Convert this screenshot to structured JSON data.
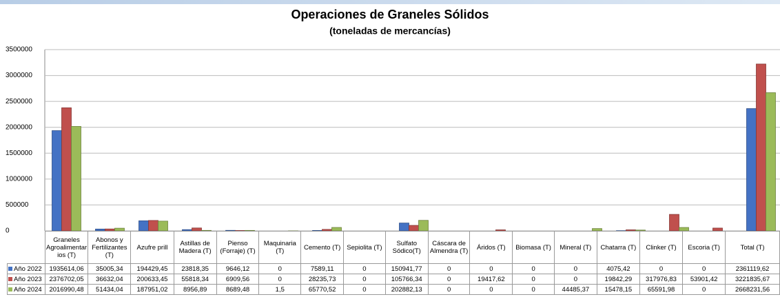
{
  "chart_data": {
    "type": "bar",
    "title": "Operaciones de Graneles Sólidos",
    "subtitle": "(toneladas de mercancías)",
    "categories": [
      "Graneles Agroalimentarios (T)",
      "Abonos y Fertilizantes (T)",
      "Azufre prill",
      "Astillas de Madera (T)",
      "Pienso (Forraje) (T)",
      "Maquinaria (T)",
      "Cemento (T)",
      "Sepiolita (T)",
      "Sulfato Sódico(T)",
      "Cáscara de Almendra (T)",
      "Áridos (T)",
      "Biomasa (T)",
      "Mineral (T)",
      "Chatarra (T)",
      "Clinker (T)",
      "Escoria (T)",
      "Total (T)"
    ],
    "series": [
      {
        "name": "Año 2022",
        "color": "#4472c4",
        "values": [
          1935614.06,
          35005.34,
          194429.45,
          23818.35,
          9646.12,
          0,
          7589.11,
          0,
          150941.77,
          0,
          0,
          0,
          0,
          4075.42,
          0,
          0,
          2361119.62
        ],
        "value_labels": [
          "1935614,06",
          "35005,34",
          "194429,45",
          "23818,35",
          "9646,12",
          "0",
          "7589,11",
          "0",
          "150941,77",
          "0",
          "0",
          "0",
          "0",
          "4075,42",
          "0",
          "0",
          "2361119,62"
        ]
      },
      {
        "name": "Año 2023",
        "color": "#c0504d",
        "values": [
          2376702.05,
          36632.04,
          200633.45,
          55818.34,
          6909.56,
          0,
          28235.73,
          0,
          105766.34,
          0,
          19417.62,
          0,
          0,
          19842.29,
          317976.83,
          53901.42,
          3221835.67
        ],
        "value_labels": [
          "2376702,05",
          "36632,04",
          "200633,45",
          "55818,34",
          "6909,56",
          "0",
          "28235,73",
          "0",
          "105766,34",
          "0",
          "19417,62",
          "0",
          "0",
          "19842,29",
          "317976,83",
          "53901,42",
          "3221835,67"
        ]
      },
      {
        "name": "Año 2024",
        "color": "#9bbb59",
        "values": [
          2016990.48,
          51434.04,
          187951.02,
          8956.89,
          8689.48,
          1.5,
          65770.52,
          0,
          202882.13,
          0,
          0,
          0,
          44485.37,
          15478.15,
          65591.98,
          0,
          2668231.56
        ],
        "value_labels": [
          "2016990,48",
          "51434,04",
          "187951,02",
          "8956,89",
          "8689,48",
          "1,5",
          "65770,52",
          "0",
          "202882,13",
          "0",
          "0",
          "0",
          "44485,37",
          "15478,15",
          "65591,98",
          "0",
          "2668231,56"
        ]
      }
    ],
    "ylim": [
      0,
      3500000
    ],
    "yticks": [
      0,
      500000,
      1000000,
      1500000,
      2000000,
      2500000,
      3000000,
      3500000
    ],
    "grid": true
  }
}
